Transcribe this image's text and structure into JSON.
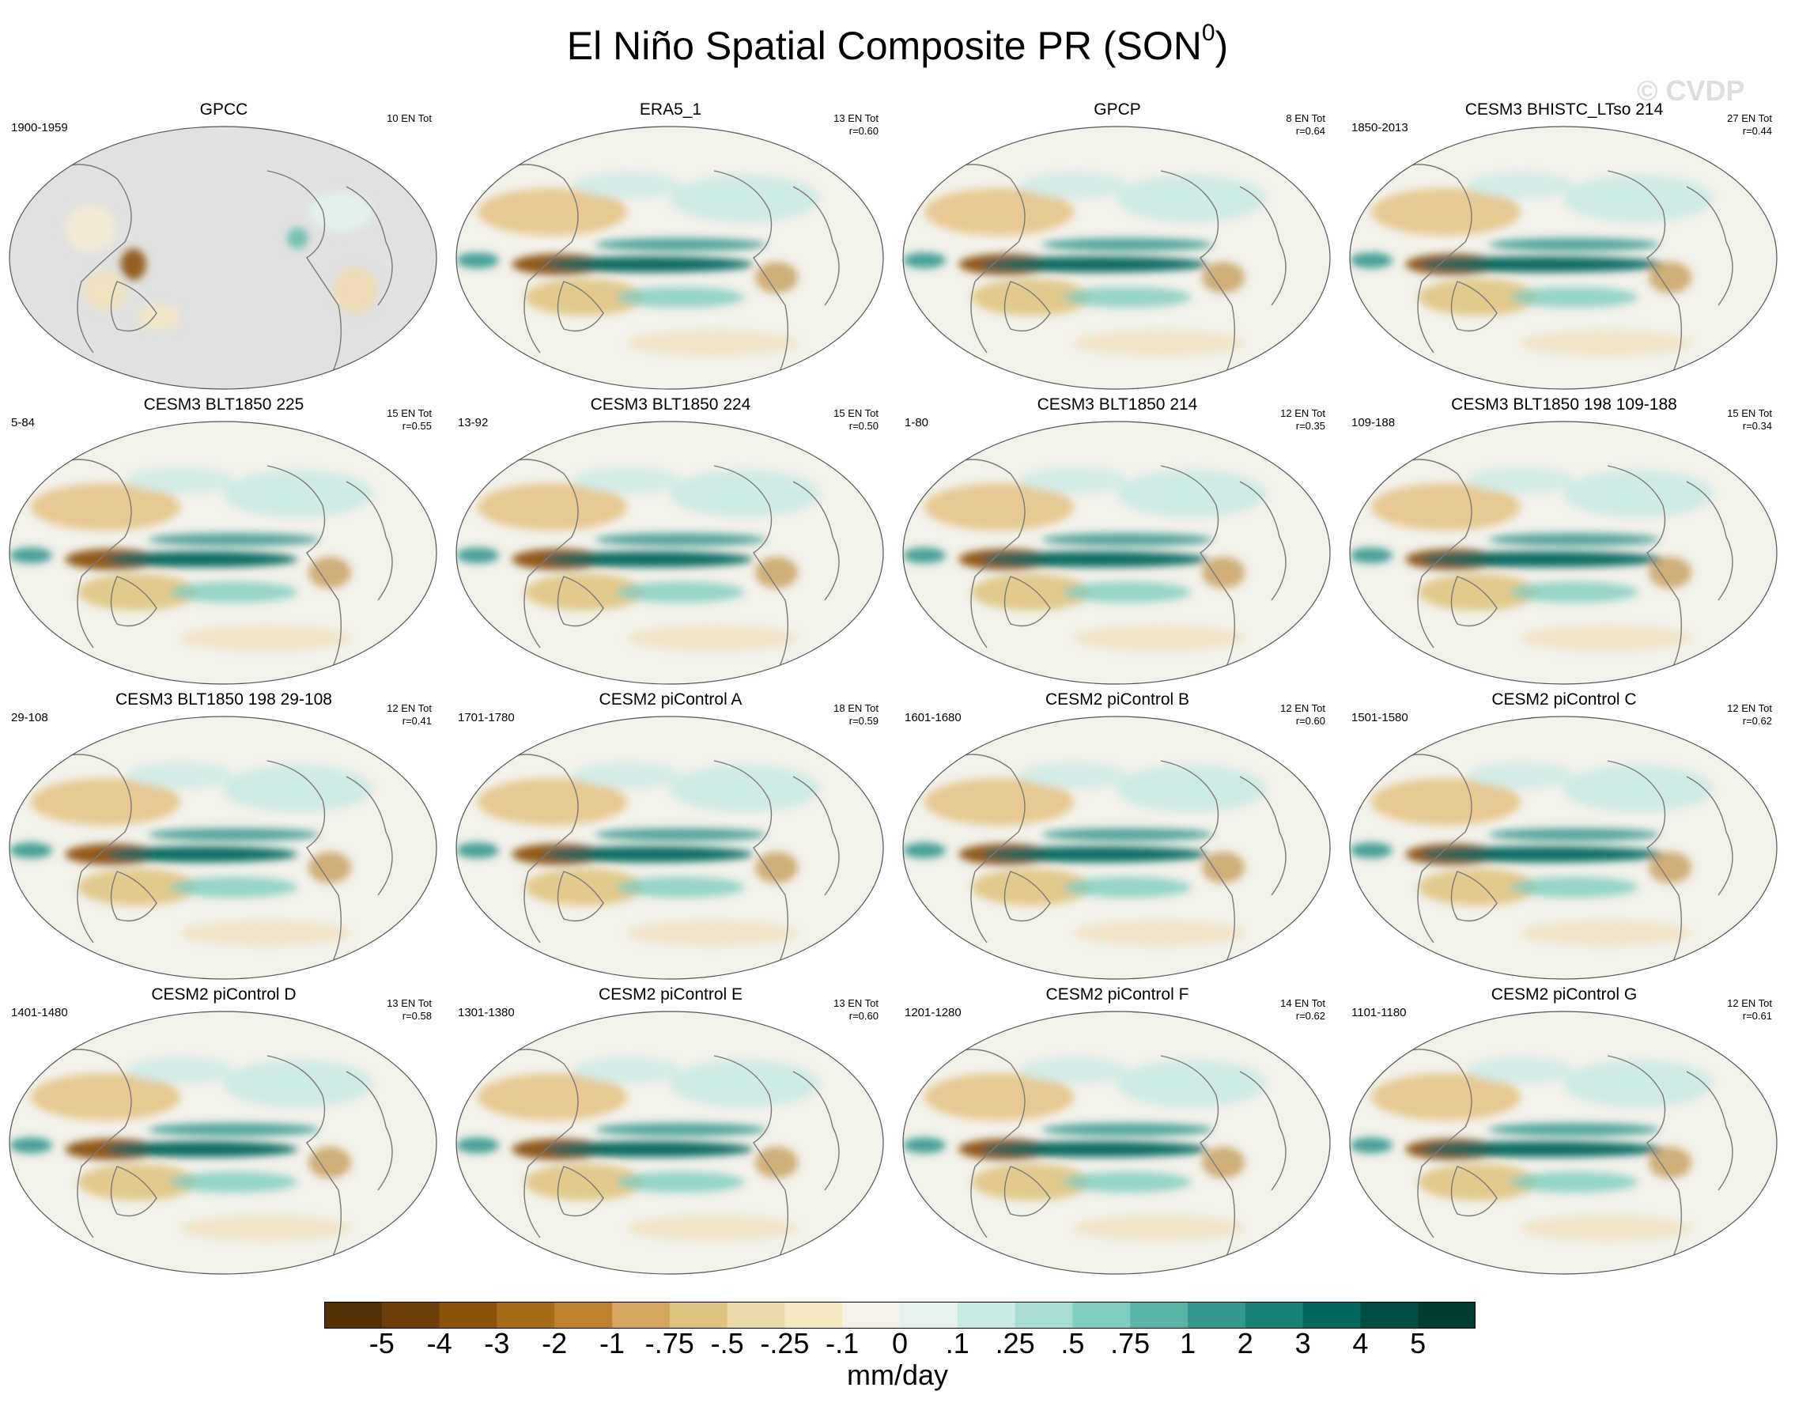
{
  "chart_data": {
    "type": "heatmap",
    "title": "El Niño Spatial Composite PR (SON",
    "title_superscript": "0",
    "watermark": "© CVDP",
    "projection": "Robinson global maps (Pacific-centered)",
    "units": "mm/day",
    "colorbar": {
      "labels": [
        "-5",
        "-4",
        "-3",
        "-2",
        "-1",
        "-.75",
        "-.5",
        "-.25",
        "-.1",
        "0",
        ".1",
        ".25",
        ".5",
        ".75",
        "1",
        "2",
        "3",
        "4",
        "5"
      ],
      "colors": [
        "#543005",
        "#6e3f0a",
        "#8c510a",
        "#a86b1c",
        "#bf812d",
        "#d3a55e",
        "#dfc27d",
        "#ecd9aa",
        "#f6e8c3",
        "#f5f1e8",
        "#e6f2ef",
        "#c7eae5",
        "#a6dcd3",
        "#80cdc1",
        "#5ab4a8",
        "#35978f",
        "#1b8078",
        "#01665e",
        "#004f45",
        "#003c30"
      ]
    },
    "panels": [
      {
        "title": "GPCC",
        "left": "1900-1959",
        "right1": "10 EN Tot",
        "right2": "",
        "land_only": true
      },
      {
        "title": "ERA5_1",
        "left": "",
        "right1": "13 EN Tot",
        "right2": "r=0.60",
        "land_only": false
      },
      {
        "title": "GPCP",
        "left": "",
        "right1": "8 EN Tot",
        "right2": "r=0.64",
        "land_only": false
      },
      {
        "title": "CESM3 BHISTC_LTso 214",
        "left": "1850-2013",
        "right1": "27 EN Tot",
        "right2": "r=0.44",
        "land_only": false
      },
      {
        "title": "CESM3 BLT1850 225",
        "left": "5-84",
        "right1": "15 EN Tot",
        "right2": "r=0.55",
        "land_only": false
      },
      {
        "title": "CESM3 BLT1850 224",
        "left": "13-92",
        "right1": "15 EN Tot",
        "right2": "r=0.50",
        "land_only": false
      },
      {
        "title": "CESM3 BLT1850 214",
        "left": "1-80",
        "right1": "12 EN Tot",
        "right2": "r=0.35",
        "land_only": false
      },
      {
        "title": "CESM3 BLT1850 198 109-188",
        "left": "109-188",
        "right1": "15 EN Tot",
        "right2": "r=0.34",
        "land_only": false
      },
      {
        "title": "CESM3 BLT1850 198 29-108",
        "left": "29-108",
        "right1": "12 EN Tot",
        "right2": "r=0.41",
        "land_only": false
      },
      {
        "title": "CESM2 piControl A",
        "left": "1701-1780",
        "right1": "18 EN Tot",
        "right2": "r=0.59",
        "land_only": false
      },
      {
        "title": "CESM2 piControl B",
        "left": "1601-1680",
        "right1": "12 EN Tot",
        "right2": "r=0.60",
        "land_only": false
      },
      {
        "title": "CESM2 piControl C",
        "left": "1501-1580",
        "right1": "12 EN Tot",
        "right2": "r=0.62",
        "land_only": false
      },
      {
        "title": "CESM2 piControl D",
        "left": "1401-1480",
        "right1": "13 EN Tot",
        "right2": "r=0.58",
        "land_only": false
      },
      {
        "title": "CESM2 piControl E",
        "left": "1301-1380",
        "right1": "13 EN Tot",
        "right2": "r=0.60",
        "land_only": false
      },
      {
        "title": "CESM2 piControl F",
        "left": "1201-1280",
        "right1": "14 EN Tot",
        "right2": "r=0.62",
        "land_only": false
      },
      {
        "title": "CESM2 piControl G",
        "left": "1101-1180",
        "right1": "12 EN Tot",
        "right2": "r=0.61",
        "land_only": false
      }
    ]
  }
}
